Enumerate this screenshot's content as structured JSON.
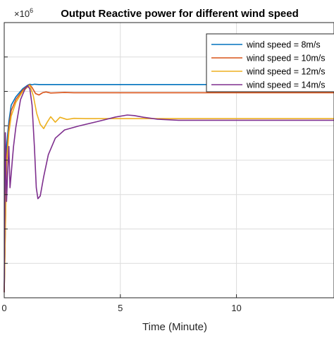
{
  "chart_data": {
    "type": "line",
    "title": "Output Reactive power for different wind speed",
    "xlabel": "Time (Minute)",
    "ylabel": "",
    "y_exponent_label": "×10",
    "y_exponent_power": "6",
    "xlim": [
      0,
      14.2
    ],
    "ylim": [
      0,
      1
    ],
    "x_ticks": [
      0,
      5,
      10
    ],
    "x_tick_labels": [
      "0",
      "5",
      "10"
    ],
    "y_ticks": [
      0.125,
      0.25,
      0.375,
      0.5,
      0.625,
      0.75,
      0.875
    ],
    "grid": true,
    "legend_position": "top-right",
    "series": [
      {
        "name": "wind speed = 8m/s",
        "color": "#0072BD",
        "x": [
          0,
          0.1,
          0.2,
          0.3,
          0.5,
          0.8,
          1.0,
          1.1,
          1.2,
          1.3,
          1.5,
          2,
          3,
          5,
          7,
          10,
          14.2
        ],
        "y": [
          0.02,
          0.55,
          0.64,
          0.7,
          0.73,
          0.76,
          0.772,
          0.776,
          0.774,
          0.776,
          0.775,
          0.775,
          0.775,
          0.775,
          0.775,
          0.775,
          0.775
        ]
      },
      {
        "name": "wind speed = 10m/s",
        "color": "#D95319",
        "x": [
          0,
          0.1,
          0.2,
          0.3,
          0.5,
          0.8,
          1.0,
          1.1,
          1.2,
          1.35,
          1.5,
          1.65,
          1.8,
          2.0,
          2.3,
          2.6,
          3,
          5,
          7,
          10,
          14.2
        ],
        "y": [
          0.02,
          0.5,
          0.62,
          0.68,
          0.72,
          0.755,
          0.77,
          0.774,
          0.764,
          0.742,
          0.737,
          0.745,
          0.748,
          0.744,
          0.745,
          0.746,
          0.745,
          0.745,
          0.745,
          0.745,
          0.745
        ]
      },
      {
        "name": "wind speed = 12m/s",
        "color": "#EDB120",
        "x": [
          0,
          0.1,
          0.2,
          0.3,
          0.5,
          0.8,
          1.0,
          1.1,
          1.25,
          1.4,
          1.55,
          1.7,
          1.85,
          2.0,
          2.2,
          2.4,
          2.7,
          3.0,
          3.5,
          5,
          7,
          10,
          14.2
        ],
        "y": [
          0.02,
          0.48,
          0.6,
          0.66,
          0.71,
          0.75,
          0.765,
          0.772,
          0.735,
          0.67,
          0.63,
          0.615,
          0.638,
          0.658,
          0.638,
          0.656,
          0.648,
          0.652,
          0.651,
          0.651,
          0.651,
          0.651,
          0.651
        ]
      },
      {
        "name": "wind speed = 14m/s",
        "color": "#7E2F8E",
        "x": [
          0,
          0.05,
          0.1,
          0.15,
          0.2,
          0.25,
          0.3,
          0.35,
          0.4,
          0.5,
          0.7,
          0.9,
          1.0,
          1.1,
          1.2,
          1.3,
          1.38,
          1.45,
          1.55,
          1.7,
          1.9,
          2.2,
          2.6,
          3.2,
          4.0,
          4.8,
          5.3,
          5.6,
          6.0,
          6.6,
          7.5,
          9,
          11,
          14.2
        ],
        "y": [
          0.02,
          0.6,
          0.35,
          0.46,
          0.55,
          0.4,
          0.45,
          0.5,
          0.55,
          0.62,
          0.72,
          0.76,
          0.77,
          0.76,
          0.7,
          0.55,
          0.4,
          0.36,
          0.37,
          0.44,
          0.52,
          0.58,
          0.61,
          0.624,
          0.64,
          0.657,
          0.664,
          0.662,
          0.656,
          0.649,
          0.645,
          0.645,
          0.645,
          0.645
        ]
      }
    ]
  }
}
